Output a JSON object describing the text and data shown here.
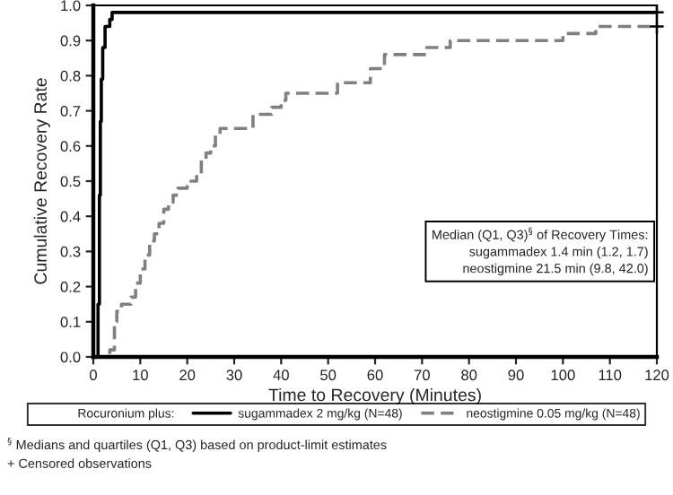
{
  "chart_data": {
    "type": "step",
    "xlabel": "Time to Recovery (Minutes)",
    "ylabel": "Cumulative Recovery Rate",
    "legend_title": "Rocuronium plus:",
    "xlim": [
      0,
      120
    ],
    "xticks": [
      0,
      10,
      20,
      30,
      40,
      50,
      60,
      70,
      80,
      90,
      100,
      110,
      120
    ],
    "ylim": [
      0.0,
      1.0
    ],
    "yticks": [
      {
        "value": 0,
        "label": "0.0"
      },
      0.1,
      0.2,
      0.3,
      0.4,
      0.5,
      0.6,
      0.7,
      0.8,
      0.9,
      {
        "value": 1,
        "label": "1.0"
      }
    ],
    "grid": false,
    "legend": "bottom",
    "series": [
      {
        "name": "sugammadex 2 mg/kg (N=48)",
        "color": "#000000",
        "line_style": "solid",
        "x": [
          0,
          1,
          1.3,
          1.5,
          1.7,
          2,
          2.5,
          3.5,
          4,
          120
        ],
        "values": [
          0,
          0.15,
          0.46,
          0.67,
          0.79,
          0.88,
          0.94,
          0.96,
          0.98,
          0.98
        ]
      },
      {
        "name": "neostigmine 0.05 mg/kg (N=48)",
        "color": "#808080",
        "line_style": "dashed",
        "x": [
          0,
          3.5,
          4.5,
          5,
          6,
          8,
          9,
          10,
          11,
          12,
          13,
          14,
          15,
          16,
          17,
          18,
          20,
          22,
          23,
          24,
          25,
          26,
          27,
          34,
          38,
          40,
          41,
          52,
          59,
          62,
          71,
          76,
          100,
          107,
          120
        ],
        "values": [
          0,
          0.02,
          0.1,
          0.13,
          0.15,
          0.17,
          0.21,
          0.25,
          0.29,
          0.33,
          0.35,
          0.38,
          0.42,
          0.44,
          0.46,
          0.48,
          0.5,
          0.52,
          0.56,
          0.58,
          0.6,
          0.63,
          0.65,
          0.69,
          0.71,
          0.73,
          0.75,
          0.78,
          0.82,
          0.86,
          0.88,
          0.9,
          0.92,
          0.94,
          0.94
        ]
      },
      {
        "type": "scatter",
        "marker": "cross",
        "color": "#000000",
        "x": [
          120,
          120
        ],
        "values": [
          0.98,
          0.94
        ]
      }
    ],
    "annotations": [
      "Median (Q1, Q3)$^{§}$ of Recovery Times:\nsugammadex 1.4 min (1.2, 1.7)\nneostigmine 21.5 min (9.8, 42.0)",
      "$^{§}$ Medians and quartiles (Q1, Q3) based on product-limit estimates",
      "+ Censored observations"
    ]
  }
}
